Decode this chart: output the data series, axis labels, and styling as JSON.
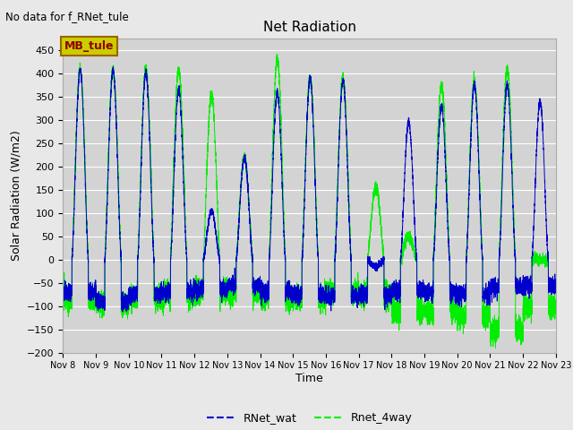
{
  "title": "Net Radiation",
  "xlabel": "Time",
  "ylabel": "Solar Radiation (W/m2)",
  "ylim": [
    -200,
    475
  ],
  "yticks": [
    -200,
    -150,
    -100,
    -50,
    0,
    50,
    100,
    150,
    200,
    250,
    300,
    350,
    400,
    450
  ],
  "background_color": "#e8e8e8",
  "plot_bg_color": "#d3d3d3",
  "top_label": "No data for f_RNet_tule",
  "legend_box_label": "MB_tule",
  "legend_box_facecolor": "#cccc00",
  "legend_box_edgecolor": "#996600",
  "legend_box_text_color": "#8b0000",
  "line1_color": "#0000cc",
  "line1_label": "RNet_wat",
  "line2_color": "#00ee00",
  "line2_label": "Rnet_4way",
  "xtick_labels": [
    "Nov 8",
    "Nov 9",
    "Nov 10",
    "Nov 11",
    "Nov 12",
    "Nov 13",
    "Nov 14",
    "Nov 15",
    "Nov 16",
    "Nov 17",
    "Nov 18",
    "Nov 19",
    "Nov 20",
    "Nov 21",
    "Nov 22",
    "Nov 23"
  ],
  "blue_day_peaks": [
    408,
    405,
    400,
    365,
    105,
    220,
    360,
    390,
    385,
    -15,
    295,
    330,
    375,
    375,
    340,
    0
  ],
  "green_day_peaks": [
    410,
    406,
    410,
    408,
    355,
    220,
    430,
    390,
    390,
    155,
    50,
    375,
    380,
    410,
    0,
    0
  ],
  "blue_night": [
    -70,
    -90,
    -75,
    -70,
    -65,
    -55,
    -70,
    -75,
    -80,
    -75,
    -65,
    -70,
    -75,
    -60,
    -55,
    -55
  ],
  "green_night": [
    -85,
    -95,
    -80,
    -75,
    -68,
    -70,
    -85,
    -85,
    -70,
    -75,
    -110,
    -110,
    -120,
    -155,
    -105,
    -105
  ],
  "rise_hour": 6.5,
  "set_hour": 18.5,
  "pts_per_day": 576
}
